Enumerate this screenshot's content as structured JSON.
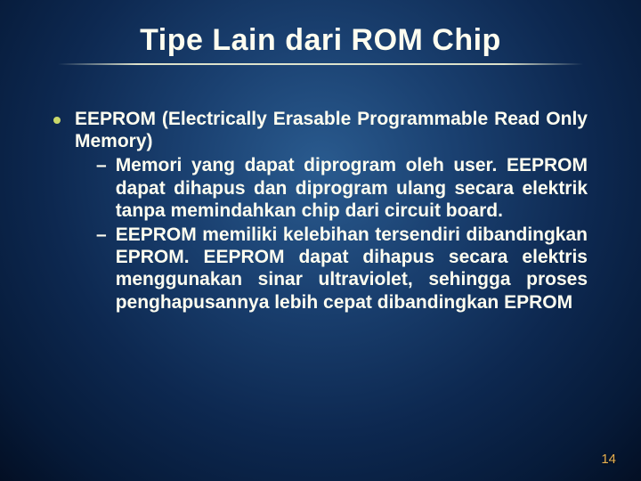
{
  "slide": {
    "title": "Tipe Lain dari ROM Chip",
    "page_number": "14",
    "background": {
      "gradient_center": "#2a5b8f",
      "gradient_mid": "#1a4070",
      "gradient_outer": "#061a38",
      "gradient_edge": "#030f24"
    },
    "colors": {
      "title_color": "#fffef0",
      "text_color": "#fffef0",
      "bullet_dot": "#c9d86a",
      "page_number_color": "#e8b050",
      "underline_color": "#fffdd8"
    },
    "typography": {
      "title_fontsize": 34,
      "body_fontsize": 21,
      "title_weight": "bold",
      "body_weight": "bold",
      "font_family": "Arial"
    },
    "bullet": {
      "heading": "EEPROM (Electrically Erasable Programmable Read Only Memory)",
      "subitems": [
        "Memori yang dapat diprogram oleh user. EEPROM dapat dihapus dan diprogram ulang secara elektrik tanpa memindahkan chip dari circuit board.",
        "EEPROM memiliki kelebihan tersendiri dibandingkan EPROM. EEPROM dapat dihapus secara elektris menggunakan sinar ultraviolet, sehingga proses penghapusannya lebih cepat dibandingkan EPROM"
      ]
    }
  }
}
